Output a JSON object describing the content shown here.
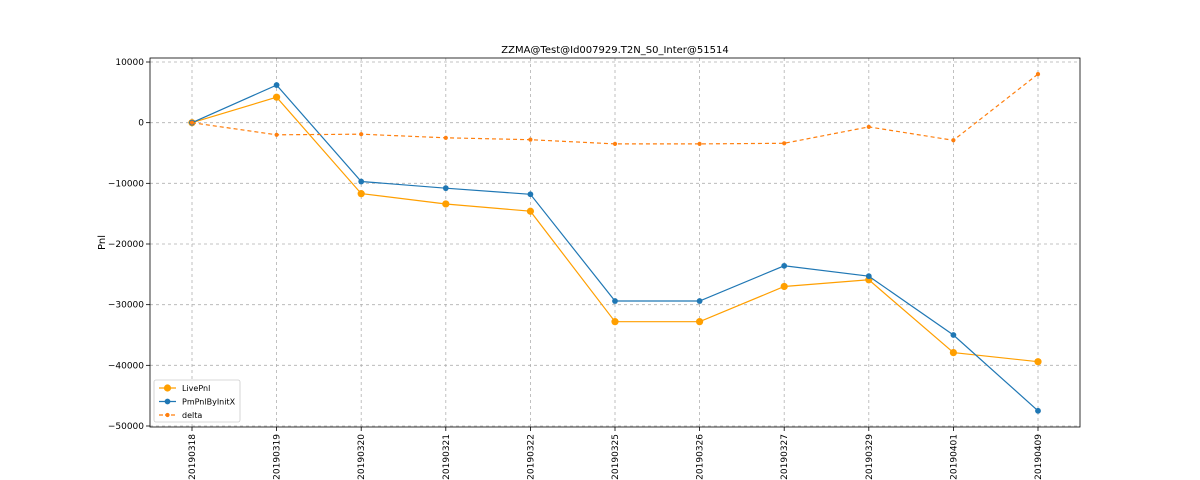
{
  "chart_data": {
    "type": "line",
    "title": "ZZMA@Test@Id007929.T2N_S0_Inter@51514",
    "xlabel": "",
    "ylabel": "Pnl",
    "categories": [
      "20190318",
      "20190319",
      "20190320",
      "20190321",
      "20190322",
      "20190325",
      "20190326",
      "20190327",
      "20190329",
      "20190401",
      "20190409"
    ],
    "ylim": [
      -50000,
      10000
    ],
    "yticks": [
      10000,
      0,
      -10000,
      -20000,
      -30000,
      -40000,
      -50000
    ],
    "ytick_labels": [
      "10000",
      "0",
      "−10000",
      "−20000",
      "−30000",
      "−40000",
      "−50000"
    ],
    "grid": true,
    "legend_position": "lower-left",
    "series": [
      {
        "name": "LivePnl",
        "color": "#ff9f00",
        "style": "solid",
        "marker": "circle-large",
        "values": [
          0,
          4200,
          -11700,
          -13400,
          -14600,
          -32800,
          -32800,
          -27000,
          -25900,
          -37900,
          -39400
        ]
      },
      {
        "name": "PmPnlByInitX",
        "color": "#1f77b4",
        "style": "solid",
        "marker": "circle",
        "values": [
          0,
          6200,
          -9700,
          -10800,
          -11800,
          -29400,
          -29400,
          -23600,
          -25300,
          -35000,
          -47500
        ]
      },
      {
        "name": "delta",
        "color": "#ff7f0e",
        "style": "dashed",
        "marker": "circle-small",
        "values": [
          0,
          -2000,
          -1900,
          -2500,
          -2800,
          -3500,
          -3500,
          -3400,
          -700,
          -2900,
          8000
        ]
      }
    ]
  }
}
